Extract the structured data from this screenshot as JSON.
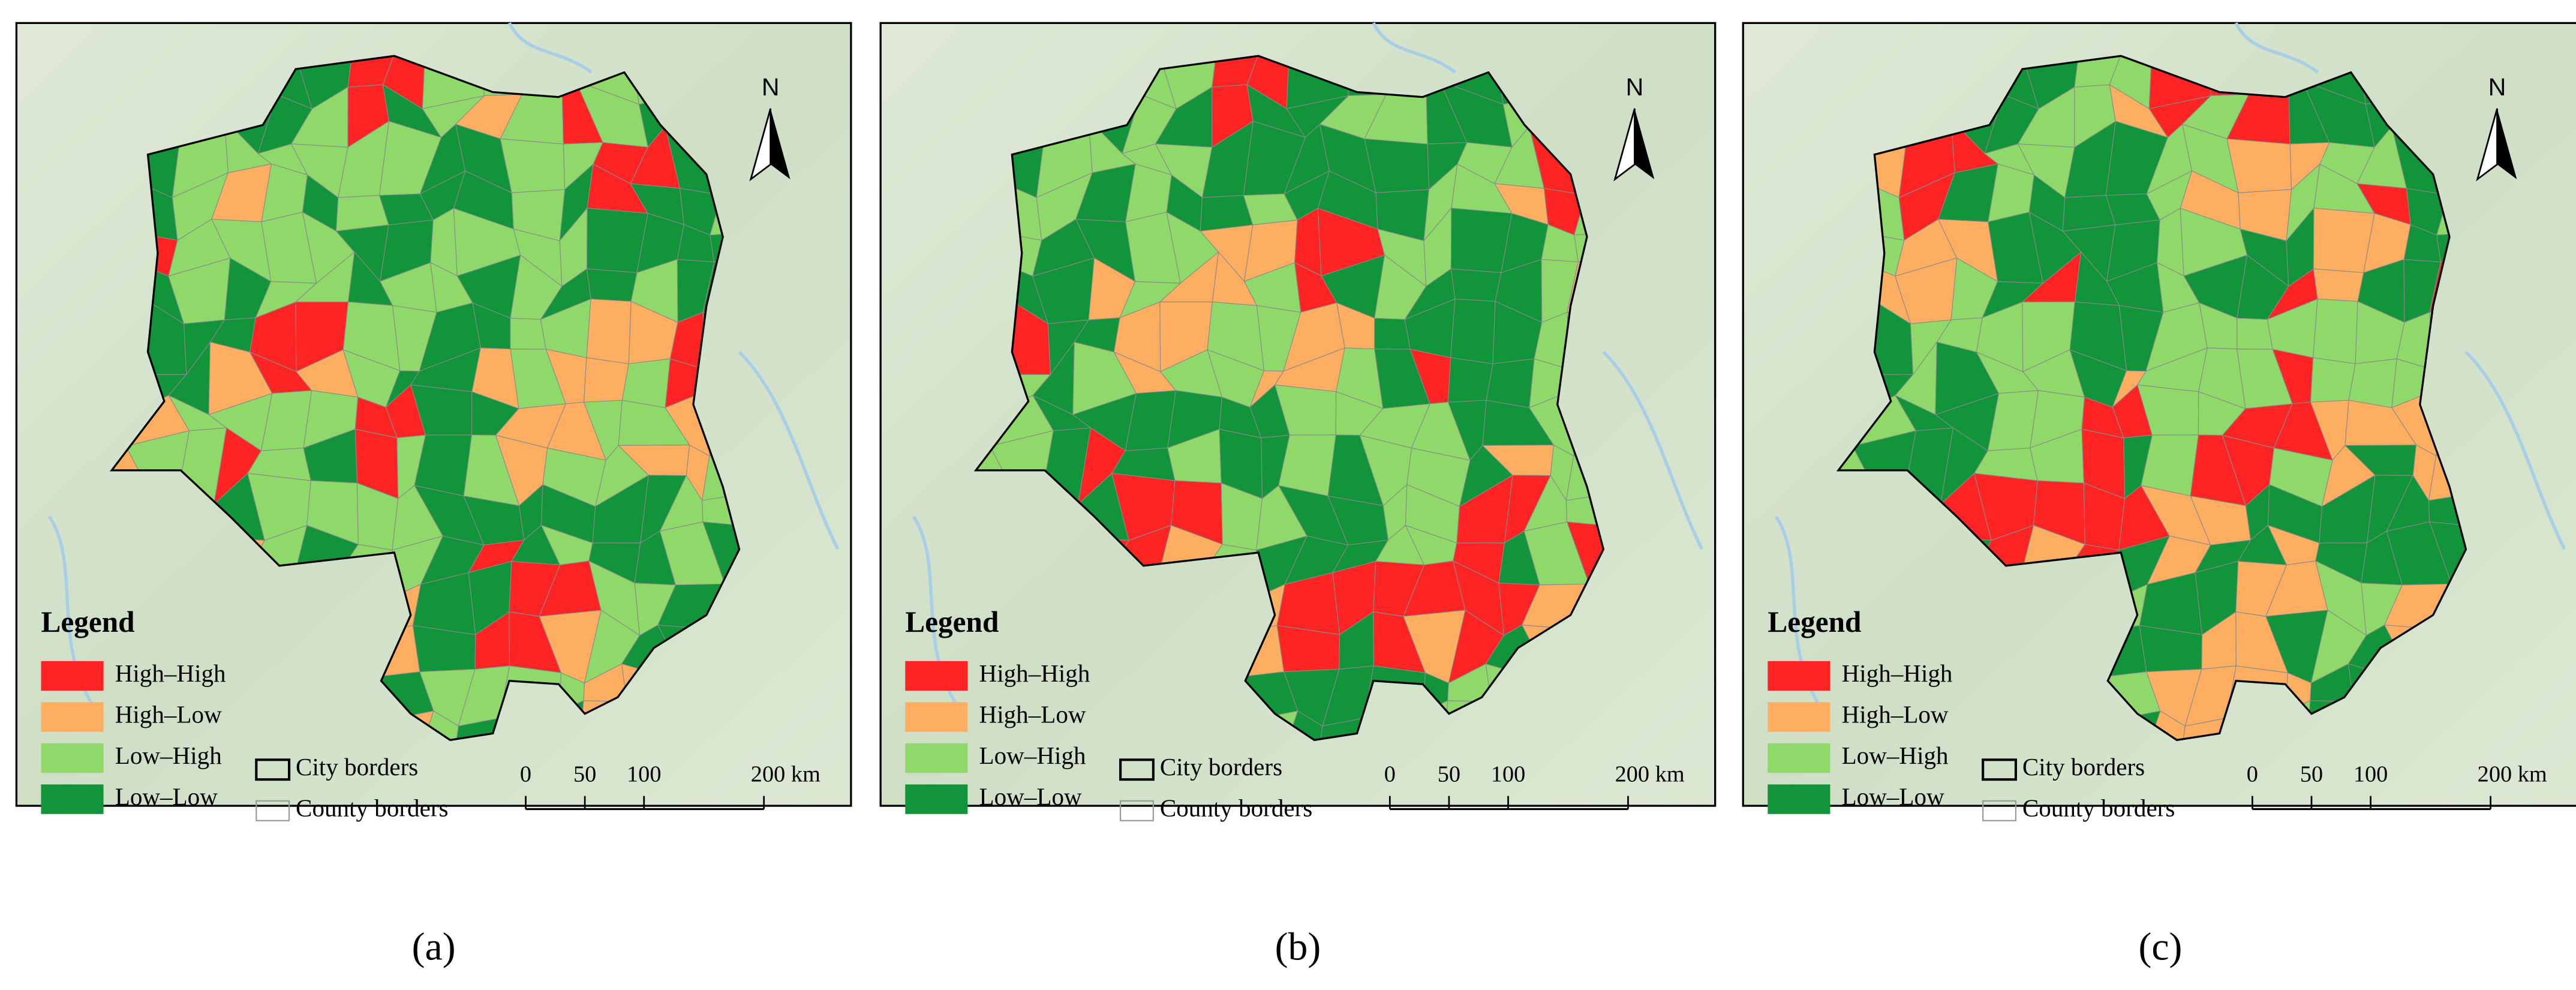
{
  "panels": [
    {
      "caption": "(a)",
      "north": "N",
      "legend": {
        "title": "Legend",
        "items": [
          {
            "label": "High–High",
            "color": "#ff2424"
          },
          {
            "label": "High–Low",
            "color": "#fdae61"
          },
          {
            "label": "Low–High",
            "color": "#8fd86a"
          },
          {
            "label": "Low–Low",
            "color": "#11943a"
          }
        ],
        "borders": [
          "City borders",
          "County borders"
        ]
      },
      "scale": [
        "0",
        "50",
        "100",
        "200 km"
      ]
    },
    {
      "caption": "(b)",
      "north": "N",
      "legend": {
        "title": "Legend",
        "items": [
          {
            "label": "High–High",
            "color": "#ff2424"
          },
          {
            "label": "High–Low",
            "color": "#fdae61"
          },
          {
            "label": "Low–High",
            "color": "#8fd86a"
          },
          {
            "label": "Low–Low",
            "color": "#11943a"
          }
        ],
        "borders": [
          "City borders",
          "County borders"
        ]
      },
      "scale": [
        "0",
        "50",
        "100",
        "200 km"
      ]
    },
    {
      "caption": "(c)",
      "north": "N",
      "legend": {
        "title": "Legend",
        "items": [
          {
            "label": "High–High",
            "color": "#ff2424"
          },
          {
            "label": "High–Low",
            "color": "#fdae61"
          },
          {
            "label": "Low–High",
            "color": "#8fd86a"
          },
          {
            "label": "Low–Low",
            "color": "#11943a"
          }
        ],
        "borders": [
          "City borders",
          "County borders"
        ]
      },
      "scale": [
        "0",
        "50",
        "100",
        "200 km"
      ]
    }
  ]
}
